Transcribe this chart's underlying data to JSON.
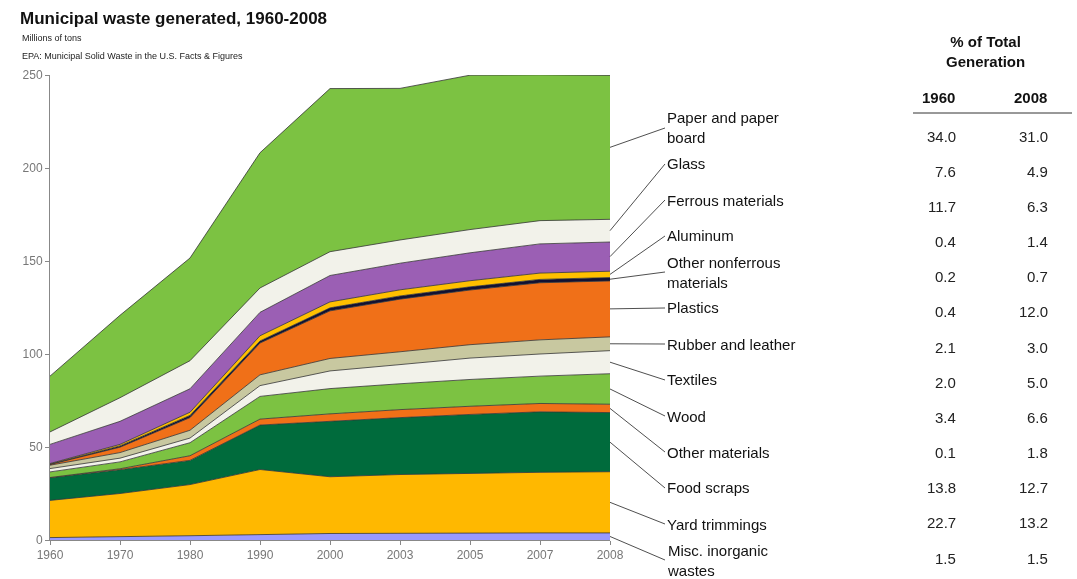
{
  "chart_data": {
    "type": "area",
    "stacked": true,
    "title": "Municipal waste generated, 1960-2008",
    "subtitle": "Millions of tons",
    "categories": [
      "1960",
      "1970",
      "1980",
      "1990",
      "2000",
      "2003",
      "2005",
      "2007",
      "2008"
    ],
    "ylim": [
      0,
      250
    ],
    "yticks": [
      0,
      50,
      100,
      150,
      200,
      250
    ],
    "legend": false,
    "series": [
      {
        "name": "Misc. inorganic wastes",
        "color": "#9999ff",
        "values": [
          1.3,
          1.8,
          2.3,
          2.9,
          3.5,
          3.6,
          3.7,
          3.8,
          3.8
        ]
      },
      {
        "name": "Yard trimmings",
        "color": "#ffb800",
        "values": [
          20.0,
          23.2,
          27.5,
          35.0,
          30.5,
          31.6,
          32.1,
          32.6,
          32.9
        ]
      },
      {
        "name": "Food scraps",
        "color": "#006b3c",
        "values": [
          12.2,
          12.8,
          13.0,
          23.9,
          29.8,
          30.6,
          31.7,
          32.5,
          31.8
        ]
      },
      {
        "name": "Other materials",
        "color": "#f07018",
        "values": [
          0.1,
          0.5,
          2.5,
          3.2,
          4.0,
          4.3,
          4.4,
          4.5,
          4.5
        ]
      },
      {
        "name": "Wood",
        "color": "#7cc242",
        "values": [
          3.0,
          3.7,
          7.0,
          12.2,
          13.6,
          13.9,
          14.4,
          14.7,
          16.4
        ]
      },
      {
        "name": "Textiles",
        "color": "#f2f2ea",
        "values": [
          1.8,
          2.0,
          2.5,
          5.8,
          9.5,
          10.3,
          11.5,
          11.9,
          12.4
        ]
      },
      {
        "name": "Rubber and leather",
        "color": "#c8c8a0",
        "values": [
          1.8,
          3.0,
          4.2,
          5.8,
          6.7,
          6.9,
          7.2,
          7.6,
          7.4
        ]
      },
      {
        "name": "Plastics",
        "color": "#f07018",
        "values": [
          0.4,
          2.9,
          6.8,
          17.1,
          25.6,
          28.3,
          29.4,
          30.7,
          30.1
        ]
      },
      {
        "name": "Other nonferrous materials",
        "color": "#111133",
        "values": [
          0.2,
          0.7,
          1.2,
          1.1,
          1.6,
          1.7,
          1.7,
          1.8,
          1.8
        ]
      },
      {
        "name": "Aluminum",
        "color": "#ffc000",
        "values": [
          0.3,
          0.8,
          1.7,
          2.8,
          3.2,
          3.3,
          3.3,
          3.4,
          3.4
        ]
      },
      {
        "name": "Ferrous materials",
        "color": "#9b5fb4",
        "values": [
          10.3,
          12.4,
          12.6,
          12.6,
          14.2,
          14.3,
          15.0,
          15.7,
          15.7
        ]
      },
      {
        "name": "Glass",
        "color": "#f2f2ea",
        "values": [
          6.7,
          12.7,
          15.1,
          13.1,
          12.8,
          12.5,
          12.5,
          12.5,
          12.2
        ]
      },
      {
        "name": "Paper and paper board",
        "color": "#7cc242",
        "values": [
          30.0,
          44.3,
          55.2,
          72.7,
          87.7,
          81.5,
          83.0,
          78.4,
          77.4
        ]
      }
    ],
    "annotations": [
      "EPA: Municipal Solid Waste in the U.S. Facts & Figures",
      "% of Total Generation",
      "1960",
      "2008",
      "34.0",
      "31.0",
      "7.6",
      "4.9",
      "11.7",
      "6.3",
      "0.4",
      "1.4",
      "0.2",
      "0.7",
      "0.4",
      "12.0",
      "2.1",
      "3.0",
      "2.0",
      "5.0",
      "3.4",
      "6.6",
      "0.1",
      "1.8",
      "13.8",
      "12.7",
      "22.7",
      "13.2",
      "1.5",
      "1.5"
    ]
  }
}
